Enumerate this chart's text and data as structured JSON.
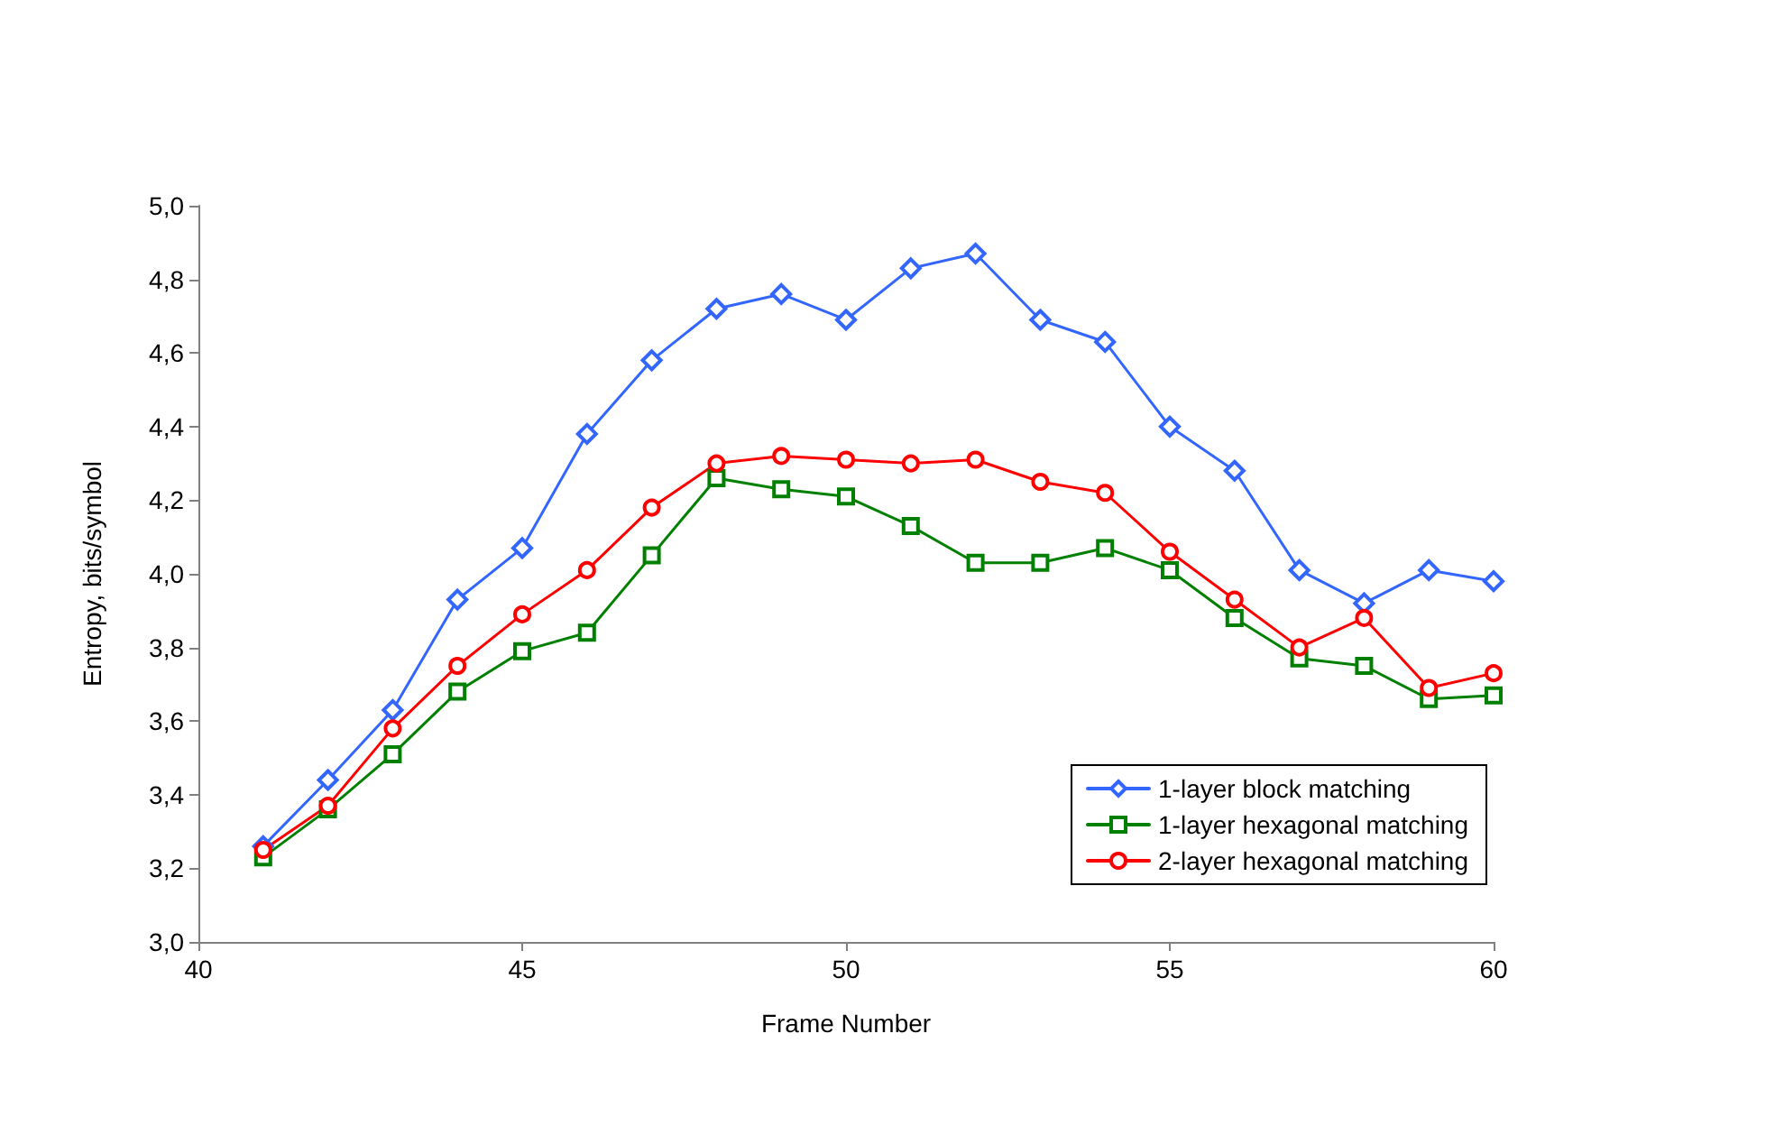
{
  "chart_data": {
    "type": "line",
    "xlabel": "Frame Number",
    "ylabel": "Entropy, bits/symbol",
    "x": [
      41,
      42,
      43,
      44,
      45,
      46,
      47,
      48,
      49,
      50,
      51,
      52,
      53,
      54,
      55,
      56,
      57,
      58,
      59,
      60
    ],
    "series": [
      {
        "name": "1-layer block matching",
        "color": "#3366ff",
        "marker": "diamond",
        "values": [
          3.26,
          3.44,
          3.63,
          3.93,
          4.07,
          4.38,
          4.58,
          4.72,
          4.76,
          4.69,
          4.83,
          4.87,
          4.69,
          4.63,
          4.4,
          4.28,
          4.01,
          3.92,
          4.01,
          3.98
        ]
      },
      {
        "name": "1-layer hexagonal matching",
        "color": "#008000",
        "marker": "square",
        "values": [
          3.23,
          3.36,
          3.51,
          3.68,
          3.79,
          3.84,
          4.05,
          4.26,
          4.23,
          4.21,
          4.13,
          4.03,
          4.03,
          4.07,
          4.01,
          3.88,
          3.77,
          3.75,
          3.66,
          3.67
        ]
      },
      {
        "name": "2-layer hexagonal matching",
        "color": "#ff0000",
        "marker": "circle",
        "values": [
          3.25,
          3.37,
          3.58,
          3.75,
          3.89,
          4.01,
          4.18,
          4.3,
          4.32,
          4.31,
          4.3,
          4.31,
          4.25,
          4.22,
          4.06,
          3.93,
          3.8,
          3.88,
          3.69,
          3.73
        ]
      }
    ],
    "xlim": [
      40,
      60
    ],
    "xticks": [
      40,
      45,
      50,
      55,
      60
    ],
    "ylim": [
      3.0,
      5.0
    ],
    "yticks": [
      {
        "value": 3.0,
        "label": "3,0"
      },
      {
        "value": 3.2,
        "label": "3,2"
      },
      {
        "value": 3.4,
        "label": "3,4"
      },
      {
        "value": 3.6,
        "label": "3,6"
      },
      {
        "value": 3.8,
        "label": "3,8"
      },
      {
        "value": 4.0,
        "label": "4,0"
      },
      {
        "value": 4.2,
        "label": "4,2"
      },
      {
        "value": 4.4,
        "label": "4,4"
      },
      {
        "value": 4.6,
        "label": "4,6"
      },
      {
        "value": 4.8,
        "label": "4,8"
      },
      {
        "value": 5.0,
        "label": "5,0"
      }
    ],
    "grid": false,
    "legend": "bottom right",
    "line_style": "solid"
  }
}
